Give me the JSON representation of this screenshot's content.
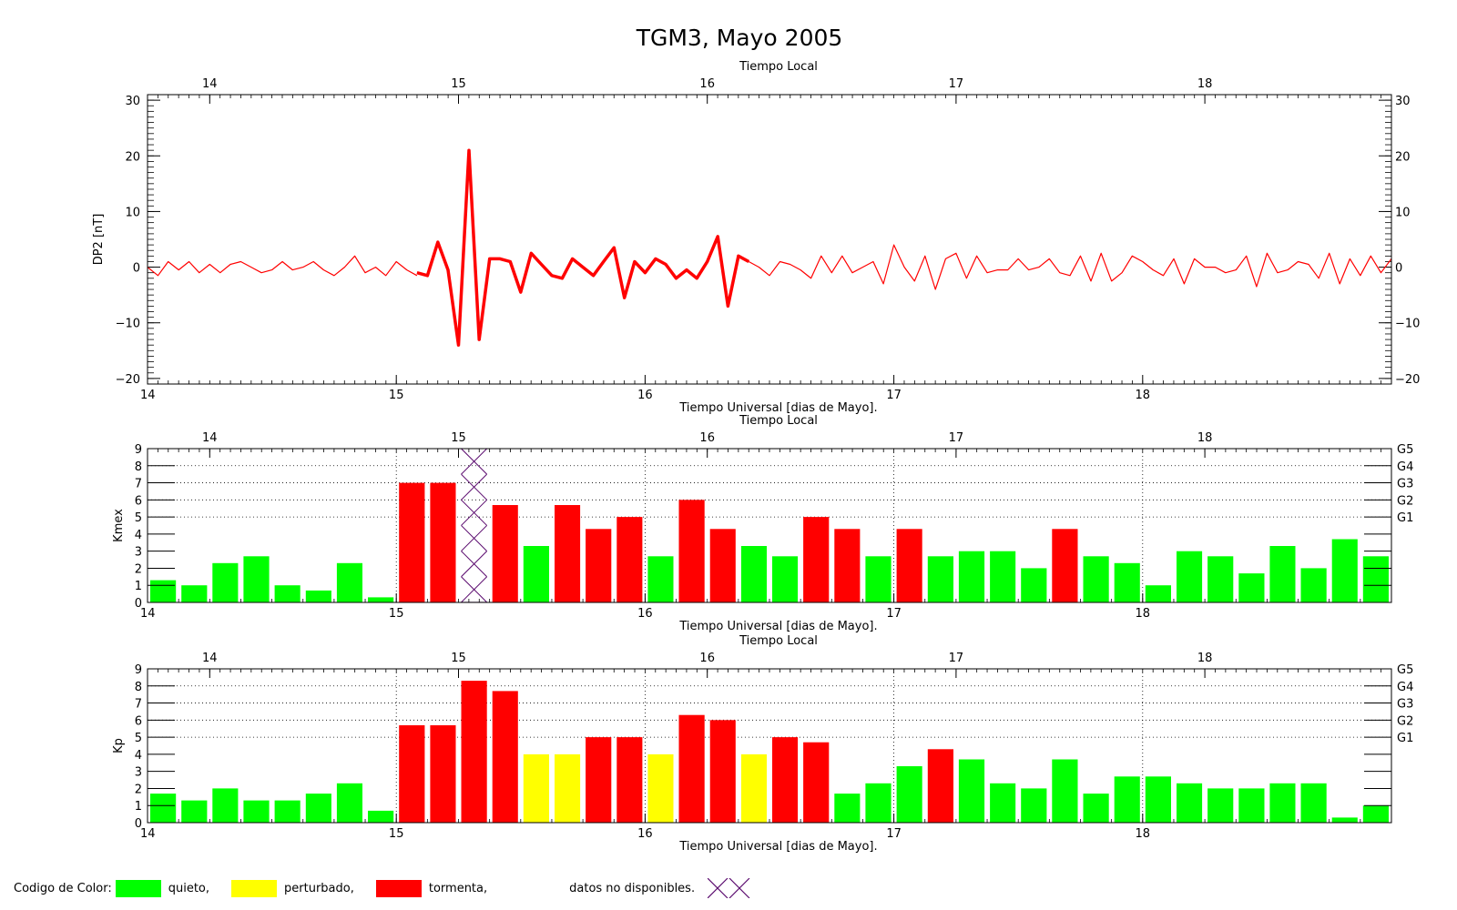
{
  "chart_data": {
    "title": "TGM3, Mayo 2005",
    "top_axis_label": "Tiempo Local",
    "bottom_axis_label": "Tiempo Universal [dias de Mayo].",
    "x_range": [
      14.0,
      19.0
    ],
    "x_ticks_ut": [
      "14",
      "15",
      "16",
      "17",
      "18"
    ],
    "x_ticks_local": [
      "14",
      "15",
      "16",
      "17",
      "18"
    ],
    "panels": [
      {
        "type": "line",
        "ylabel": "DP2 [nT]",
        "ylim": [
          -21,
          31
        ],
        "y_ticks": [
          "−20",
          "−10",
          "0",
          "10",
          "20",
          "30"
        ],
        "y_ticks_right": [
          "−20",
          "−10",
          "0",
          "10",
          "20",
          "30"
        ],
        "color": "#ff0000",
        "series": [
          {
            "x": [
              14.0,
              14.042,
              14.083,
              14.125,
              14.167,
              14.208,
              14.25,
              14.292,
              14.333,
              14.375,
              14.417,
              14.458,
              14.5,
              14.542,
              14.583,
              14.625,
              14.667,
              14.708,
              14.75,
              14.792,
              14.833,
              14.875,
              14.917,
              14.958,
              15.0,
              15.042,
              15.083
            ],
            "y": [
              0,
              -1.5,
              1,
              -0.5,
              1,
              -1,
              0.5,
              -1,
              0.5,
              1,
              0,
              -1,
              -0.5,
              1,
              -0.5,
              0,
              1,
              -0.5,
              -1.5,
              0,
              2,
              -1,
              0,
              -1.5,
              1,
              -0.5,
              -1.5
            ]
          },
          {
            "bold": true,
            "x": [
              15.083,
              15.125,
              15.167,
              15.208,
              15.25,
              15.292,
              15.333,
              15.375,
              15.417,
              15.458,
              15.5,
              15.542,
              15.583,
              15.625,
              15.667,
              15.708,
              15.75,
              15.792,
              15.833,
              15.875,
              15.917,
              15.958,
              16.0,
              16.042,
              16.083,
              16.125,
              16.167,
              16.208,
              16.25,
              16.292,
              16.333,
              16.375,
              16.417
            ],
            "y": [
              -1,
              -1.5,
              4.5,
              -0.5,
              -14,
              21,
              -13,
              1.5,
              1.5,
              1,
              -4.5,
              2.5,
              0.5,
              -1.5,
              -2,
              1.5,
              0,
              -1.5,
              1,
              3.5,
              -5.5,
              1,
              -1,
              1.5,
              0.5,
              -2,
              -0.5,
              -2,
              1,
              5.5,
              -7,
              2,
              1
            ]
          },
          {
            "x": [
              16.417,
              16.458,
              16.5,
              16.542,
              16.583,
              16.625,
              16.667,
              16.708,
              16.75,
              16.792,
              16.833,
              16.875,
              16.917,
              16.958,
              17.0,
              17.042,
              17.083,
              17.125,
              17.167,
              17.208,
              17.25,
              17.292,
              17.333,
              17.375,
              17.417,
              17.458,
              17.5,
              17.542,
              17.583,
              17.625,
              17.667,
              17.708,
              17.75,
              17.792,
              17.833,
              17.875,
              17.917,
              17.958,
              18.0,
              18.042,
              18.083,
              18.125,
              18.167,
              18.208,
              18.25,
              18.292,
              18.333,
              18.375,
              18.417,
              18.458,
              18.5,
              18.542,
              18.583,
              18.625,
              18.667,
              18.708,
              18.75,
              18.792,
              18.833,
              18.875,
              18.917,
              18.958,
              19.0
            ],
            "y": [
              1,
              0,
              -1.5,
              1,
              0.5,
              -0.5,
              -2,
              2,
              -1,
              2,
              -1,
              0,
              1,
              -3,
              4,
              0,
              -2.5,
              2,
              -4,
              1.5,
              2.5,
              -2,
              2,
              -1,
              -0.5,
              -0.5,
              1.5,
              -0.5,
              0,
              1.5,
              -1,
              -1.5,
              2,
              -2.5,
              2.5,
              -2.5,
              -1,
              2,
              1,
              -0.5,
              -1.5,
              1.5,
              -3,
              1.5,
              0,
              0,
              -1,
              -0.5,
              2,
              -3.5,
              2.5,
              -1,
              -0.5,
              1,
              0.5,
              -2,
              2.5,
              -3,
              1.5,
              -1.5,
              2,
              -1,
              1.5
            ]
          }
        ]
      },
      {
        "type": "bar",
        "ylabel": "Kmex",
        "ylim": [
          0,
          9
        ],
        "y_ticks": [
          "0",
          "1",
          "2",
          "3",
          "4",
          "5",
          "6",
          "7",
          "8",
          "9"
        ],
        "storm_levels": [
          {
            "label": "G5",
            "value": 9
          },
          {
            "label": "G4",
            "value": 8
          },
          {
            "label": "G3",
            "value": 7
          },
          {
            "label": "G2",
            "value": 6
          },
          {
            "label": "G1",
            "value": 5
          }
        ],
        "bar_width_days": 0.125,
        "values": [
          1.3,
          1.0,
          2.3,
          2.7,
          1.0,
          0.7,
          2.3,
          0.3,
          7.0,
          7.0,
          null,
          5.7,
          3.3,
          5.7,
          4.3,
          5.0,
          2.7,
          6.0,
          4.3,
          3.3,
          2.7,
          5.0,
          4.3,
          2.7,
          4.3,
          2.7,
          3.0,
          3.0,
          2.0,
          4.3,
          2.7,
          2.3,
          1.0,
          3.0,
          2.7,
          1.7,
          3.3,
          2.0,
          3.7,
          2.7
        ],
        "colors": [
          "g",
          "g",
          "g",
          "g",
          "g",
          "g",
          "g",
          "g",
          "r",
          "r",
          "x",
          "r",
          "g",
          "r",
          "r",
          "r",
          "g",
          "r",
          "r",
          "g",
          "g",
          "r",
          "r",
          "g",
          "r",
          "g",
          "g",
          "g",
          "g",
          "r",
          "g",
          "g",
          "g",
          "g",
          "g",
          "g",
          "g",
          "g",
          "g",
          "g"
        ]
      },
      {
        "type": "bar",
        "ylabel": "Kp",
        "ylim": [
          0,
          9
        ],
        "y_ticks": [
          "0",
          "1",
          "2",
          "3",
          "4",
          "5",
          "6",
          "7",
          "8",
          "9"
        ],
        "storm_levels": [
          {
            "label": "G5",
            "value": 9
          },
          {
            "label": "G4",
            "value": 8
          },
          {
            "label": "G3",
            "value": 7
          },
          {
            "label": "G2",
            "value": 6
          },
          {
            "label": "G1",
            "value": 5
          }
        ],
        "bar_width_days": 0.125,
        "values": [
          1.7,
          1.3,
          2.0,
          1.3,
          1.3,
          1.7,
          2.3,
          0.7,
          5.7,
          5.7,
          8.3,
          7.7,
          4.0,
          4.0,
          5.0,
          5.0,
          4.0,
          6.3,
          6.0,
          4.0,
          5.0,
          4.7,
          1.7,
          2.3,
          3.3,
          4.3,
          3.7,
          2.3,
          2.0,
          3.7,
          1.7,
          2.7,
          2.7,
          2.3,
          2.0,
          2.0,
          2.3,
          2.3,
          0.3,
          1.0
        ],
        "colors": [
          "g",
          "g",
          "g",
          "g",
          "g",
          "g",
          "g",
          "g",
          "r",
          "r",
          "r",
          "r",
          "y",
          "y",
          "r",
          "r",
          "y",
          "r",
          "r",
          "y",
          "r",
          "r",
          "g",
          "g",
          "g",
          "r",
          "g",
          "g",
          "g",
          "g",
          "g",
          "g",
          "g",
          "g",
          "g",
          "g",
          "g",
          "g",
          "g",
          "g"
        ]
      }
    ]
  },
  "legend": {
    "title": "Codigo de Color:",
    "quiet_label": "quieto,",
    "disturbed_label": "perturbado,",
    "storm_label": "tormenta,",
    "nodata_label": "datos no disponibles.",
    "colors": {
      "quiet": "#00ff00",
      "disturbed": "#ffff00",
      "storm": "#ff0000",
      "nodata": "#5a0a6e"
    }
  }
}
